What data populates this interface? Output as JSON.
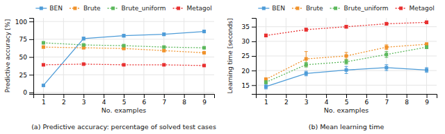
{
  "chart_data": [
    {
      "type": "line",
      "title": "(a) Predictive accuracy: percentage of solved test cases",
      "x_label": "No. examples",
      "y_label": "Predictive accuracy [%]",
      "x": [
        1,
        3,
        5,
        7,
        9
      ],
      "xlim": [
        0.5,
        9.5
      ],
      "xticks": [
        1,
        2,
        3,
        4,
        5,
        6,
        7,
        8,
        9
      ],
      "ylim": [
        -2,
        105
      ],
      "yticks": [
        0,
        25,
        50,
        75,
        100
      ],
      "grid": true,
      "legend": "top",
      "series": [
        {
          "name": "BEN",
          "color": "#4e9cd8",
          "line_style": "solid",
          "marker": "square",
          "values": [
            10,
            76,
            80,
            82,
            86
          ],
          "errors": [
            1,
            2,
            2,
            2,
            2
          ]
        },
        {
          "name": "Brute",
          "color": "#f0922b",
          "line_style": "dotted",
          "marker": "square",
          "values": [
            64,
            63,
            62,
            59,
            56
          ],
          "errors": [
            1,
            1,
            1,
            1,
            1
          ]
        },
        {
          "name": "Brute_uniform",
          "color": "#5cb85c",
          "line_style": "dotted",
          "marker": "square",
          "values": [
            70,
            67,
            66,
            64,
            63
          ],
          "errors": [
            1,
            1,
            1,
            1,
            1
          ]
        },
        {
          "name": "Metagol",
          "color": "#e83030",
          "line_style": "dotted",
          "marker": "square",
          "values": [
            39,
            40,
            39,
            39,
            38
          ],
          "errors": [
            1,
            1,
            1,
            1,
            1
          ]
        }
      ]
    },
    {
      "type": "line",
      "title": "(b) Mean learning time",
      "x_label": "No. examples",
      "y_label": "Learning time [seconds]",
      "x": [
        1,
        3,
        5,
        7,
        9
      ],
      "xlim": [
        0.5,
        9.5
      ],
      "xticks": [
        1,
        2,
        3,
        4,
        5,
        6,
        7,
        8,
        9
      ],
      "ylim": [
        12,
        38
      ],
      "yticks": [
        15,
        20,
        25,
        30,
        35
      ],
      "grid": true,
      "legend": "top",
      "series": [
        {
          "name": "BEN",
          "color": "#4e9cd8",
          "line_style": "solid",
          "marker": "square",
          "values": [
            14.5,
            19.0,
            20.2,
            21.0,
            20.2
          ],
          "errors": [
            0.8,
            0.8,
            1.2,
            1.0,
            0.8
          ]
        },
        {
          "name": "Brute",
          "color": "#f0922b",
          "line_style": "dotted",
          "marker": "square",
          "values": [
            17.0,
            24.0,
            25.0,
            28.0,
            29.0
          ],
          "errors": [
            0.5,
            2.5,
            1.2,
            0.8,
            0.5
          ]
        },
        {
          "name": "Brute_uniform",
          "color": "#5cb85c",
          "line_style": "dotted",
          "marker": "square",
          "values": [
            16.0,
            22.0,
            23.0,
            25.5,
            28.0
          ],
          "errors": [
            0.5,
            0.8,
            0.8,
            1.0,
            0.5
          ]
        },
        {
          "name": "Metagol",
          "color": "#e83030",
          "line_style": "dotted",
          "marker": "square",
          "values": [
            32.0,
            34.0,
            35.0,
            36.0,
            36.5
          ],
          "errors": [
            0.5,
            0.5,
            0.5,
            0.5,
            0.5
          ]
        }
      ]
    }
  ]
}
